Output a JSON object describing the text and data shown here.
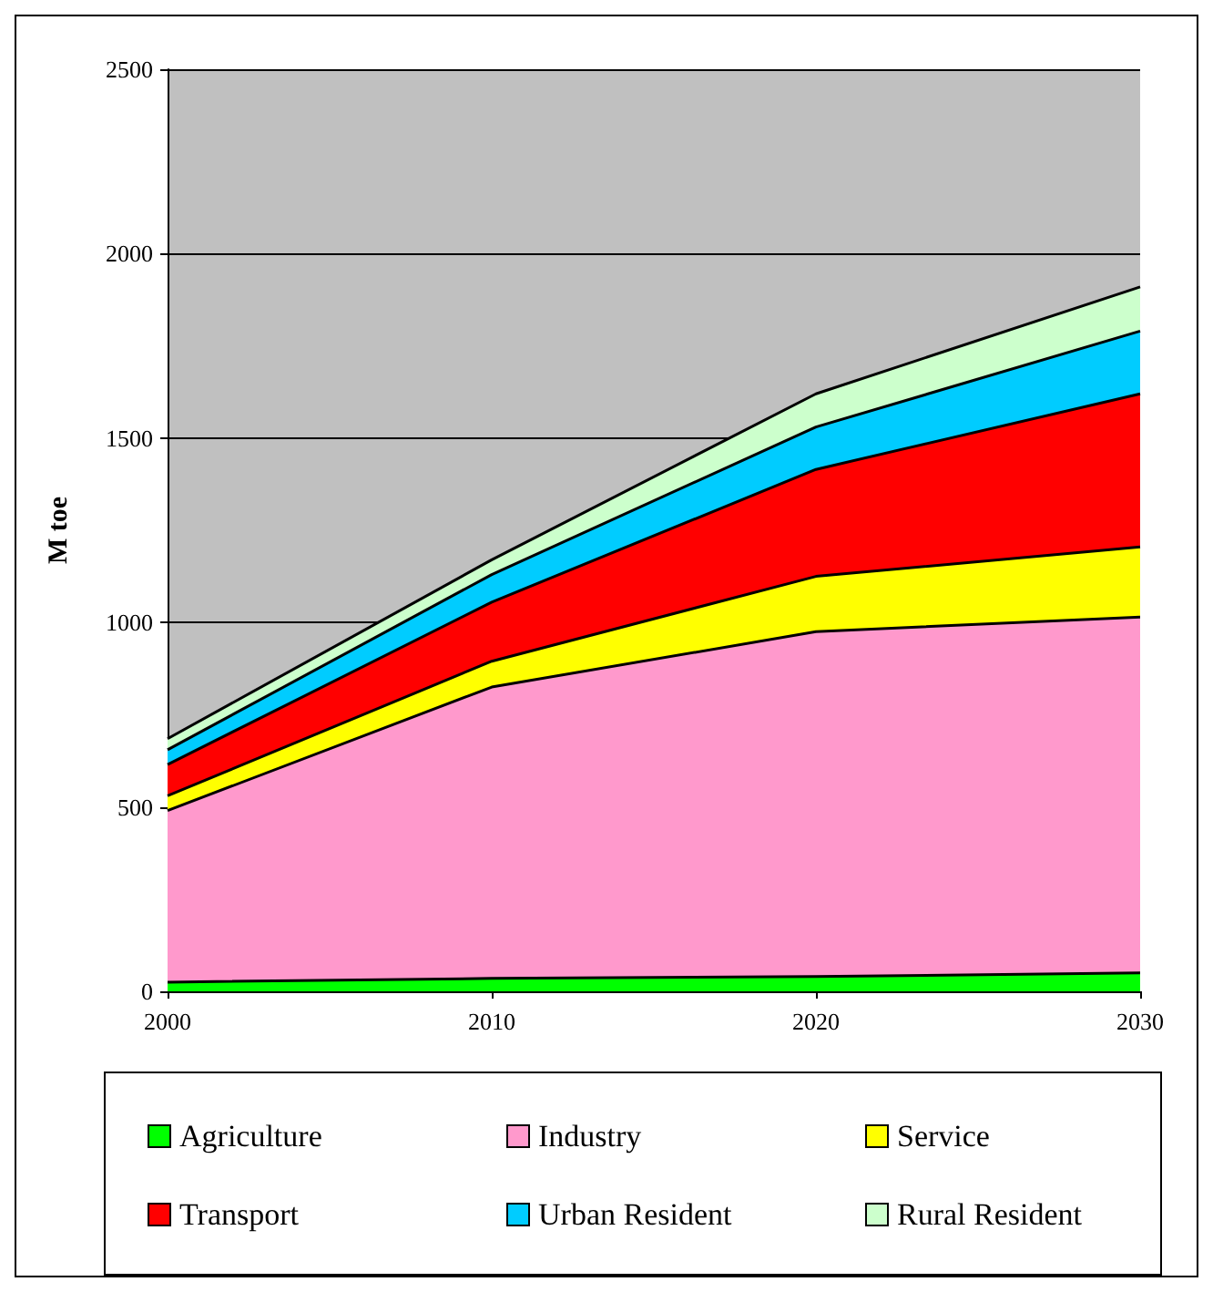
{
  "chart_data": {
    "type": "area",
    "stacked": true,
    "ylabel": "M toe",
    "x": [
      2000,
      2010,
      2020,
      2030
    ],
    "series": [
      {
        "name": "Agriculture",
        "color": "#00ff00",
        "values": [
          25,
          35,
          40,
          50
        ]
      },
      {
        "name": "Industry",
        "color": "#ff99cc",
        "values": [
          465,
          790,
          935,
          965
        ]
      },
      {
        "name": "Service",
        "color": "#ffff00",
        "values": [
          40,
          70,
          150,
          190
        ]
      },
      {
        "name": "Transport",
        "color": "#ff0000",
        "values": [
          85,
          160,
          290,
          415
        ]
      },
      {
        "name": "Urban Resident",
        "color": "#00ccff",
        "values": [
          40,
          75,
          115,
          170
        ]
      },
      {
        "name": "Rural Resident",
        "color": "#ccffcc",
        "values": [
          30,
          40,
          90,
          120
        ]
      }
    ],
    "xlim": [
      2000,
      2030
    ],
    "xticks": [
      2000,
      2010,
      2020,
      2030
    ],
    "ylim": [
      0,
      2500
    ],
    "yticks": [
      0,
      500,
      1000,
      1500,
      2000,
      2500
    ],
    "grid": "y",
    "legend": "bottom"
  }
}
